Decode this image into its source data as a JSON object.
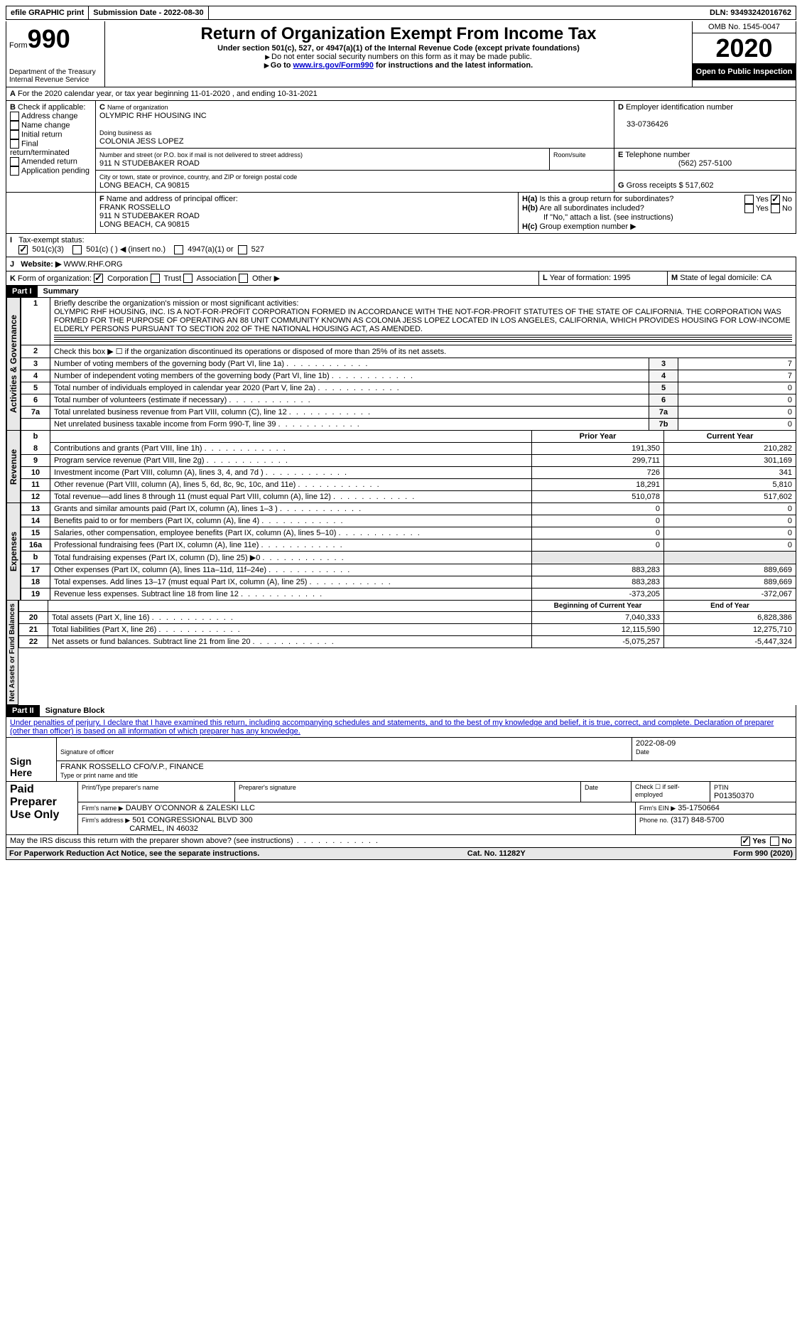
{
  "topbar": {
    "efile": "efile GRAPHIC print",
    "submission_label": "Submission Date - 2022-08-30",
    "dln_label": "DLN: 93493242016762"
  },
  "header": {
    "form_label": "Form",
    "form_num": "990",
    "dept": "Department of the Treasury\nInternal Revenue Service",
    "title": "Return of Organization Exempt From Income Tax",
    "subtitle": "Under section 501(c), 527, or 4947(a)(1) of the Internal Revenue Code (except private foundations)",
    "note1": "Do not enter social security numbers on this form as it may be made public.",
    "note2_pre": "Go to ",
    "note2_link": "www.irs.gov/Form990",
    "note2_post": " for instructions and the latest information.",
    "omb": "OMB No. 1545-0047",
    "year": "2020",
    "open": "Open to Public Inspection"
  },
  "lineA": "For the 2020 calendar year, or tax year beginning 11-01-2020   , and ending 10-31-2021",
  "boxB": {
    "title": "Check if applicable:",
    "opts": [
      "Address change",
      "Name change",
      "Initial return",
      "Final return/terminated",
      "Amended return",
      "Application pending"
    ]
  },
  "boxC": {
    "label": "Name of organization",
    "name": "OLYMPIC RHF HOUSING INC",
    "dba_label": "Doing business as",
    "dba": "COLONIA JESS LOPEZ",
    "street_label": "Number and street (or P.O. box if mail is not delivered to street address)",
    "street": "911 N STUDEBAKER ROAD",
    "room_label": "Room/suite",
    "city_label": "City or town, state or province, country, and ZIP or foreign postal code",
    "city": "LONG BEACH, CA  90815"
  },
  "boxD": {
    "label": "Employer identification number",
    "val": "33-0736426"
  },
  "boxE": {
    "label": "Telephone number",
    "val": "(562) 257-5100"
  },
  "boxG": {
    "label": "Gross receipts $",
    "val": "517,602"
  },
  "boxF": {
    "label": "Name and address of principal officer:",
    "name": "FRANK ROSSELLO",
    "addr1": "911 N STUDEBAKER ROAD",
    "addr2": "LONG BEACH, CA  90815"
  },
  "boxH": {
    "a": "Is this a group return for subordinates?",
    "b": "Are all subordinates included?",
    "note": "If \"No,\" attach a list. (see instructions)",
    "c": "Group exemption number ▶",
    "yes": "Yes",
    "no": "No"
  },
  "boxI": {
    "label": "Tax-exempt status:",
    "o1": "501(c)(3)",
    "o2": "501(c) (  ) ◀ (insert no.)",
    "o3": "4947(a)(1) or",
    "o4": "527"
  },
  "boxJ": {
    "label": "Website: ▶",
    "val": "WWW.RHF.ORG"
  },
  "boxK": {
    "label": "Form of organization:",
    "o1": "Corporation",
    "o2": "Trust",
    "o3": "Association",
    "o4": "Other ▶"
  },
  "boxL": {
    "label": "Year of formation:",
    "val": "1995"
  },
  "boxM": {
    "label": "State of legal domicile:",
    "val": "CA"
  },
  "part1": {
    "label": "Part I",
    "title": "Summary"
  },
  "vtabs": {
    "act": "Activities & Governance",
    "rev": "Revenue",
    "exp": "Expenses",
    "net": "Net Assets or Fund Balances"
  },
  "line1": {
    "label": "Briefly describe the organization's mission or most significant activities:",
    "text": "OLYMPIC RHF HOUSING, INC. IS A NOT-FOR-PROFIT CORPORATION FORMED IN ACCORDANCE WITH THE NOT-FOR-PROFIT STATUTES OF THE STATE OF CALIFORNIA. THE CORPORATION WAS FORMED FOR THE PURPOSE OF OPERATING AN 88 UNIT COMMUNITY KNOWN AS COLONIA JESS LOPEZ LOCATED IN LOS ANGELES, CALIFORNIA, WHICH PROVIDES HOUSING FOR LOW-INCOME ELDERLY PERSONS PURSUANT TO SECTION 202 OF THE NATIONAL HOUSING ACT, AS AMENDED."
  },
  "line2": "Check this box ▶ ☐  if the organization discontinued its operations or disposed of more than 25% of its net assets.",
  "govRows": [
    {
      "n": "3",
      "l": "Number of voting members of the governing body (Part VI, line 1a)",
      "b": "3",
      "v": "7"
    },
    {
      "n": "4",
      "l": "Number of independent voting members of the governing body (Part VI, line 1b)",
      "b": "4",
      "v": "7"
    },
    {
      "n": "5",
      "l": "Total number of individuals employed in calendar year 2020 (Part V, line 2a)",
      "b": "5",
      "v": "0"
    },
    {
      "n": "6",
      "l": "Total number of volunteers (estimate if necessary)",
      "b": "6",
      "v": "0"
    },
    {
      "n": "7a",
      "l": "Total unrelated business revenue from Part VIII, column (C), line 12",
      "b": "7a",
      "v": "0"
    },
    {
      "n": "",
      "l": "Net unrelated business taxable income from Form 990-T, line 39",
      "b": "7b",
      "v": "0"
    }
  ],
  "colHeaders": {
    "prior": "Prior Year",
    "current": "Current Year",
    "begin": "Beginning of Current Year",
    "end": "End of Year"
  },
  "revRows": [
    {
      "n": "8",
      "l": "Contributions and grants (Part VIII, line 1h)",
      "p": "191,350",
      "c": "210,282"
    },
    {
      "n": "9",
      "l": "Program service revenue (Part VIII, line 2g)",
      "p": "299,711",
      "c": "301,169"
    },
    {
      "n": "10",
      "l": "Investment income (Part VIII, column (A), lines 3, 4, and 7d )",
      "p": "726",
      "c": "341"
    },
    {
      "n": "11",
      "l": "Other revenue (Part VIII, column (A), lines 5, 6d, 8c, 9c, 10c, and 11e)",
      "p": "18,291",
      "c": "5,810"
    },
    {
      "n": "12",
      "l": "Total revenue—add lines 8 through 11 (must equal Part VIII, column (A), line 12)",
      "p": "510,078",
      "c": "517,602"
    }
  ],
  "expRows": [
    {
      "n": "13",
      "l": "Grants and similar amounts paid (Part IX, column (A), lines 1–3 )",
      "p": "0",
      "c": "0"
    },
    {
      "n": "14",
      "l": "Benefits paid to or for members (Part IX, column (A), line 4)",
      "p": "0",
      "c": "0"
    },
    {
      "n": "15",
      "l": "Salaries, other compensation, employee benefits (Part IX, column (A), lines 5–10)",
      "p": "0",
      "c": "0"
    },
    {
      "n": "16a",
      "l": "Professional fundraising fees (Part IX, column (A), line 11e)",
      "p": "0",
      "c": "0"
    },
    {
      "n": "b",
      "l": "Total fundraising expenses (Part IX, column (D), line 25) ▶0",
      "p": "",
      "c": ""
    },
    {
      "n": "17",
      "l": "Other expenses (Part IX, column (A), lines 11a–11d, 11f–24e)",
      "p": "883,283",
      "c": "889,669"
    },
    {
      "n": "18",
      "l": "Total expenses. Add lines 13–17 (must equal Part IX, column (A), line 25)",
      "p": "883,283",
      "c": "889,669"
    },
    {
      "n": "19",
      "l": "Revenue less expenses. Subtract line 18 from line 12",
      "p": "-373,205",
      "c": "-372,067"
    }
  ],
  "netRows": [
    {
      "n": "20",
      "l": "Total assets (Part X, line 16)",
      "p": "7,040,333",
      "c": "6,828,386"
    },
    {
      "n": "21",
      "l": "Total liabilities (Part X, line 26)",
      "p": "12,115,590",
      "c": "12,275,710"
    },
    {
      "n": "22",
      "l": "Net assets or fund balances. Subtract line 21 from line 20",
      "p": "-5,075,257",
      "c": "-5,447,324"
    }
  ],
  "part2": {
    "label": "Part II",
    "title": "Signature Block"
  },
  "sig": {
    "penalties": "Under penalties of perjury, I declare that I have examined this return, including accompanying schedules and statements, and to the best of my knowledge and belief, it is true, correct, and complete. Declaration of preparer (other than officer) is based on all information of which preparer has any knowledge.",
    "sign_here": "Sign Here",
    "sig_officer": "Signature of officer",
    "date": "Date",
    "sig_date_val": "2022-08-09",
    "name_title": "FRANK ROSSELLO  CFO/V.P., FINANCE",
    "type_name": "Type or print name and title",
    "paid": "Paid Preparer Use Only",
    "prep_name_label": "Print/Type preparer's name",
    "prep_sig_label": "Preparer's signature",
    "date_label": "Date",
    "check_if": "Check ☐ if self-employed",
    "ptin_label": "PTIN",
    "ptin": "P01350370",
    "firm_name_label": "Firm's name    ▶",
    "firm_name": "DAUBY O'CONNOR & ZALESKI LLC",
    "firm_ein_label": "Firm's EIN ▶",
    "firm_ein": "35-1750664",
    "firm_addr_label": "Firm's address ▶",
    "firm_addr1": "501 CONGRESSIONAL BLVD 300",
    "firm_addr2": "CARMEL, IN  46032",
    "phone_label": "Phone no.",
    "phone": "(317) 848-5700",
    "discuss": "May the IRS discuss this return with the preparer shown above? (see instructions)"
  },
  "footer": {
    "left": "For Paperwork Reduction Act Notice, see the separate instructions.",
    "mid": "Cat. No. 11282Y",
    "right": "Form 990 (2020)"
  }
}
